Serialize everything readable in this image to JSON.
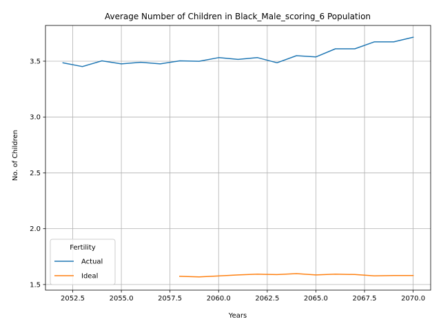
{
  "chart_data": {
    "type": "line",
    "title": "Average Number of Children in Black_Male_scoring_6 Population",
    "xlabel": "Years",
    "ylabel": "No. of Children",
    "xlim": [
      2051.1,
      2070.9
    ],
    "ylim": [
      1.45,
      3.82
    ],
    "xticks": [
      2052.5,
      2055.0,
      2057.5,
      2060.0,
      2062.5,
      2065.0,
      2067.5,
      2070.0
    ],
    "xtick_labels": [
      "2052.5",
      "2055.0",
      "2057.5",
      "2060.0",
      "2062.5",
      "2065.0",
      "2067.5",
      "2070.0"
    ],
    "yticks": [
      1.5,
      2.0,
      2.5,
      3.0,
      3.5
    ],
    "ytick_labels": [
      "1.5",
      "2.0",
      "2.5",
      "3.0",
      "3.5"
    ],
    "grid": true,
    "legend": {
      "title": "Fertility",
      "position": "lower-left"
    },
    "series": [
      {
        "name": "Actual",
        "color": "#1f77b4",
        "x": [
          2052,
          2053,
          2054,
          2055,
          2056,
          2057,
          2058,
          2059,
          2060,
          2061,
          2062,
          2063,
          2064,
          2065,
          2066,
          2067,
          2068,
          2069,
          2070
        ],
        "y": [
          3.485,
          3.452,
          3.503,
          3.476,
          3.49,
          3.476,
          3.503,
          3.499,
          3.532,
          3.516,
          3.532,
          3.486,
          3.549,
          3.538,
          3.611,
          3.611,
          3.673,
          3.673,
          3.714
        ]
      },
      {
        "name": "Ideal",
        "color": "#ff7f0e",
        "x": [
          2058,
          2059,
          2060,
          2061,
          2062,
          2063,
          2064,
          2065,
          2066,
          2067,
          2068,
          2069,
          2070
        ],
        "y": [
          1.574,
          1.569,
          1.577,
          1.586,
          1.593,
          1.589,
          1.598,
          1.586,
          1.593,
          1.59,
          1.578,
          1.581,
          1.581
        ]
      }
    ]
  }
}
